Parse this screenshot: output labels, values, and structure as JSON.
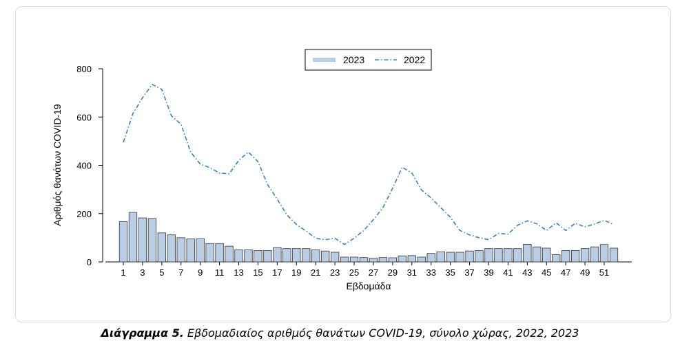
{
  "caption": {
    "label": "Διάγραμμα 5.",
    "text": "Εβδομαδιαίος αριθμός θανάτων COVID-19, σύνολο χώρας, 2022, 2023"
  },
  "colors": {
    "bar_fill": "#b9cde4",
    "bar_stroke": "#333333",
    "line": "#3a7dc9",
    "card_border": "#dcdcdc"
  },
  "chart_data": {
    "type": "bar",
    "xlabel": "Εβδομάδα",
    "ylabel": "Αριθμός θανάτων COVID-19",
    "ylim": [
      0,
      800
    ],
    "yticks": [
      0,
      200,
      400,
      600,
      800
    ],
    "xticks": [
      1,
      3,
      5,
      7,
      9,
      11,
      13,
      15,
      17,
      19,
      21,
      23,
      25,
      27,
      29,
      31,
      33,
      35,
      37,
      39,
      41,
      43,
      45,
      47,
      49,
      51
    ],
    "legend_position": "top-center",
    "x": [
      1,
      2,
      3,
      4,
      5,
      6,
      7,
      8,
      9,
      10,
      11,
      12,
      13,
      14,
      15,
      16,
      17,
      18,
      19,
      20,
      21,
      22,
      23,
      24,
      25,
      26,
      27,
      28,
      29,
      30,
      31,
      32,
      33,
      34,
      35,
      36,
      37,
      38,
      39,
      40,
      41,
      42,
      43,
      44,
      45,
      46,
      47,
      48,
      49,
      50,
      51,
      52
    ],
    "series": [
      {
        "name": "2023",
        "type": "bar",
        "values": [
          167,
          205,
          182,
          180,
          120,
          112,
          100,
          95,
          96,
          76,
          76,
          65,
          50,
          50,
          47,
          47,
          59,
          55,
          55,
          55,
          50,
          45,
          40,
          20,
          20,
          18,
          15,
          18,
          17,
          25,
          26,
          20,
          35,
          42,
          40,
          40,
          45,
          47,
          55,
          55,
          55,
          55,
          73,
          62,
          57,
          30,
          47,
          47,
          55,
          62,
          72,
          57
        ]
      },
      {
        "name": "2022",
        "type": "line",
        "style": "dash-dot",
        "values": [
          495,
          615,
          680,
          735,
          715,
          605,
          570,
          455,
          405,
          390,
          368,
          365,
          420,
          455,
          415,
          320,
          260,
          195,
          155,
          128,
          98,
          92,
          98,
          72,
          98,
          130,
          175,
          225,
          305,
          392,
          368,
          298,
          265,
          225,
          185,
          130,
          112,
          100,
          92,
          118,
          115,
          152,
          170,
          158,
          130,
          162,
          130,
          160,
          145,
          157,
          172,
          155
        ]
      }
    ]
  }
}
